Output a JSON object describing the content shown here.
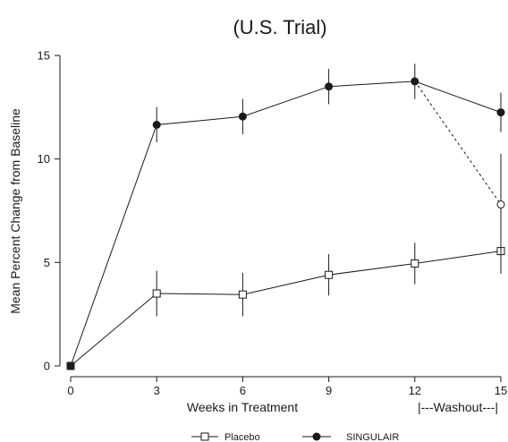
{
  "chart_data": {
    "type": "line",
    "title": "(U.S. Trial)",
    "xlabel": "Weeks in Treatment",
    "ylabel": "Mean Percent Change from Baseline",
    "x_ticks": [
      0,
      3,
      6,
      9,
      12,
      15
    ],
    "y_ticks": [
      0,
      5,
      10,
      15
    ],
    "xlim": [
      0,
      15
    ],
    "ylim": [
      0,
      15
    ],
    "grid": false,
    "annotation": "|---Washout---|",
    "legend_position": "bottom",
    "series": [
      {
        "name": "Placebo",
        "marker": "open-square",
        "color": "#1a1a1a",
        "x": [
          0,
          3,
          6,
          9,
          12,
          15
        ],
        "y": [
          0,
          3.5,
          3.45,
          4.4,
          4.95,
          5.55
        ],
        "err": [
          0,
          1.1,
          1.05,
          1.0,
          1.0,
          1.1
        ]
      },
      {
        "name": "SINGULAIR",
        "marker": "filled-circle",
        "color": "#1a1a1a",
        "x": [
          0,
          3,
          6,
          9,
          12,
          15
        ],
        "y": [
          0,
          11.65,
          12.05,
          13.5,
          13.75,
          12.25
        ],
        "err": [
          0,
          0.85,
          0.85,
          0.85,
          0.85,
          0.95
        ]
      }
    ],
    "washout_branch": {
      "from": {
        "x": 12,
        "y": 13.75
      },
      "to": {
        "x": 15,
        "y": 7.8,
        "err": 2.45
      },
      "line_style": "dashed",
      "marker": "open-circle"
    }
  }
}
